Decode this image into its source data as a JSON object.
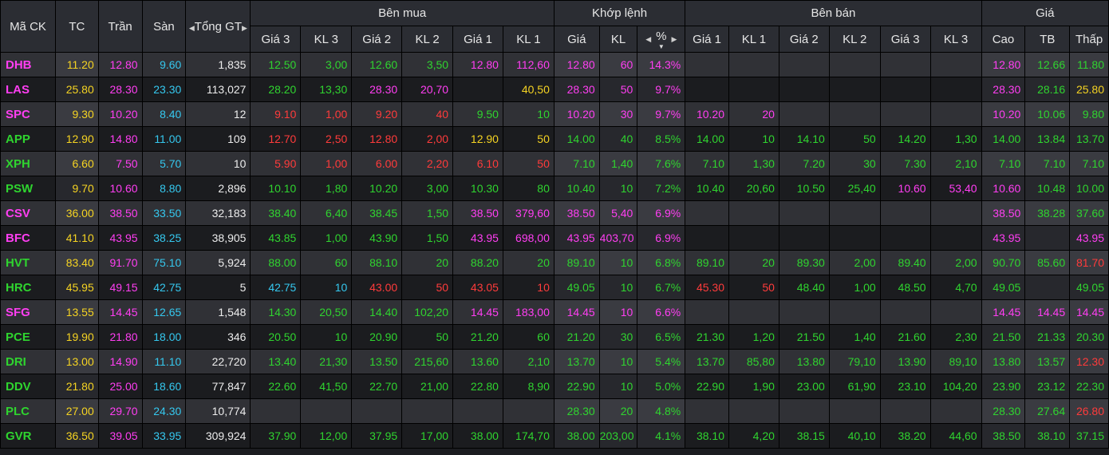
{
  "headers": {
    "symbol": "Mã CK",
    "ref": "TC",
    "ceiling": "Trần",
    "floor": "Sàn",
    "total": "Tổng GT",
    "bid_group": "Bên mua",
    "match_group": "Khớp lệnh",
    "ask_group": "Bên bán",
    "price_group": "Giá",
    "bid_cols": [
      "Giá 3",
      "KL 3",
      "Giá 2",
      "KL 2",
      "Giá 1",
      "KL 1"
    ],
    "match_cols": [
      "Giá",
      "KL",
      "%"
    ],
    "ask_cols": [
      "Giá 1",
      "KL 1",
      "Giá 2",
      "KL 2",
      "Giá 3",
      "KL 3"
    ],
    "price_cols": [
      "Cao",
      "TB",
      "Thấp"
    ]
  },
  "colors": {
    "up": "#2fd42f",
    "down": "#ff3b3b",
    "ref": "#f5d322",
    "ceiling": "#ff3ef2",
    "floor": "#35c8ef"
  },
  "rows": [
    {
      "sym": "DHB",
      "sc": "c",
      "tc": "11.20",
      "tran": "12.80",
      "san": "9.60",
      "tong": "1,835",
      "b3": "12.50",
      "b3v": "3,00",
      "b3c": "u",
      "b2": "12.60",
      "b2v": "3,50",
      "b2c": "u",
      "b1": "12.80",
      "b1v": "112,60",
      "b1c": "c",
      "mp": "12.80",
      "mv": "60",
      "mpct": "14.3%",
      "mc": "c",
      "a1": "",
      "a1v": "",
      "a1c": "",
      "a2": "",
      "a2v": "",
      "a2c": "",
      "a3": "",
      "a3v": "",
      "a3c": "",
      "cao": "12.80",
      "caoc": "c",
      "tb": "12.66",
      "tbc": "u",
      "thap": "11.80",
      "thapc": "u"
    },
    {
      "sym": "LAS",
      "sc": "c",
      "tc": "25.80",
      "tran": "28.30",
      "san": "23.30",
      "tong": "113,027",
      "b3": "28.20",
      "b3v": "13,30",
      "b3c": "u",
      "b2": "28.30",
      "b2v": "20,70",
      "b2c": "c",
      "b1": "",
      "b1v": "40,50",
      "b1c": "r",
      "mp": "28.30",
      "mv": "50",
      "mpct": "9.7%",
      "mc": "c",
      "a1": "",
      "a1v": "",
      "a1c": "",
      "a2": "",
      "a2v": "",
      "a2c": "",
      "a3": "",
      "a3v": "",
      "a3c": "",
      "cao": "28.30",
      "caoc": "c",
      "tb": "28.16",
      "tbc": "u",
      "thap": "25.80",
      "thapc": "r"
    },
    {
      "sym": "SPC",
      "sc": "c",
      "tc": "9.30",
      "tran": "10.20",
      "san": "8.40",
      "tong": "12",
      "b3": "9.10",
      "b3v": "1,00",
      "b3c": "d",
      "b2": "9.20",
      "b2v": "40",
      "b2c": "d",
      "b1": "9.50",
      "b1v": "10",
      "b1c": "u",
      "mp": "10.20",
      "mv": "30",
      "mpct": "9.7%",
      "mc": "c",
      "a1": "10.20",
      "a1v": "20",
      "a1c": "c",
      "a2": "",
      "a2v": "",
      "a2c": "",
      "a3": "",
      "a3v": "",
      "a3c": "",
      "cao": "10.20",
      "caoc": "c",
      "tb": "10.06",
      "tbc": "u",
      "thap": "9.80",
      "thapc": "u"
    },
    {
      "sym": "APP",
      "sc": "u",
      "tc": "12.90",
      "tran": "14.80",
      "san": "11.00",
      "tong": "109",
      "b3": "12.70",
      "b3v": "2,50",
      "b3c": "d",
      "b2": "12.80",
      "b2v": "2,00",
      "b2c": "d",
      "b1": "12.90",
      "b1v": "50",
      "b1c": "r",
      "mp": "14.00",
      "mv": "40",
      "mpct": "8.5%",
      "mc": "u",
      "a1": "14.00",
      "a1v": "10",
      "a1c": "u",
      "a2": "14.10",
      "a2v": "50",
      "a2c": "u",
      "a3": "14.20",
      "a3v": "1,30",
      "a3c": "u",
      "cao": "14.00",
      "caoc": "u",
      "tb": "13.84",
      "tbc": "u",
      "thap": "13.70",
      "thapc": "u"
    },
    {
      "sym": "XPH",
      "sc": "u",
      "tc": "6.60",
      "tran": "7.50",
      "san": "5.70",
      "tong": "10",
      "b3": "5.90",
      "b3v": "1,00",
      "b3c": "d",
      "b2": "6.00",
      "b2v": "2,20",
      "b2c": "d",
      "b1": "6.10",
      "b1v": "50",
      "b1c": "d",
      "mp": "7.10",
      "mv": "1,40",
      "mpct": "7.6%",
      "mc": "u",
      "a1": "7.10",
      "a1v": "1,30",
      "a1c": "u",
      "a2": "7.20",
      "a2v": "30",
      "a2c": "u",
      "a3": "7.30",
      "a3v": "2,10",
      "a3c": "u",
      "cao": "7.10",
      "caoc": "u",
      "tb": "7.10",
      "tbc": "u",
      "thap": "7.10",
      "thapc": "u"
    },
    {
      "sym": "PSW",
      "sc": "u",
      "tc": "9.70",
      "tran": "10.60",
      "san": "8.80",
      "tong": "2,896",
      "b3": "10.10",
      "b3v": "1,80",
      "b3c": "u",
      "b2": "10.20",
      "b2v": "3,00",
      "b2c": "u",
      "b1": "10.30",
      "b1v": "80",
      "b1c": "u",
      "mp": "10.40",
      "mv": "10",
      "mpct": "7.2%",
      "mc": "u",
      "a1": "10.40",
      "a1v": "20,60",
      "a1c": "u",
      "a2": "10.50",
      "a2v": "25,40",
      "a2c": "u",
      "a3": "10.60",
      "a3v": "53,40",
      "a3c": "c",
      "cao": "10.60",
      "caoc": "c",
      "tb": "10.48",
      "tbc": "u",
      "thap": "10.00",
      "thapc": "u"
    },
    {
      "sym": "CSV",
      "sc": "c",
      "tc": "36.00",
      "tran": "38.50",
      "san": "33.50",
      "tong": "32,183",
      "b3": "38.40",
      "b3v": "6,40",
      "b3c": "u",
      "b2": "38.45",
      "b2v": "1,50",
      "b2c": "u",
      "b1": "38.50",
      "b1v": "379,60",
      "b1c": "c",
      "mp": "38.50",
      "mv": "5,40",
      "mpct": "6.9%",
      "mc": "c",
      "a1": "",
      "a1v": "",
      "a1c": "",
      "a2": "",
      "a2v": "",
      "a2c": "",
      "a3": "",
      "a3v": "",
      "a3c": "",
      "cao": "38.50",
      "caoc": "c",
      "tb": "38.28",
      "tbc": "u",
      "thap": "37.60",
      "thapc": "u"
    },
    {
      "sym": "BFC",
      "sc": "c",
      "tc": "41.10",
      "tran": "43.95",
      "san": "38.25",
      "tong": "38,905",
      "b3": "43.85",
      "b3v": "1,00",
      "b3c": "u",
      "b2": "43.90",
      "b2v": "1,50",
      "b2c": "u",
      "b1": "43.95",
      "b1v": "698,00",
      "b1c": "c",
      "mp": "43.95",
      "mv": "403,70",
      "mpct": "6.9%",
      "mc": "c",
      "a1": "",
      "a1v": "",
      "a1c": "",
      "a2": "",
      "a2v": "",
      "a2c": "",
      "a3": "",
      "a3v": "",
      "a3c": "",
      "cao": "43.95",
      "caoc": "c",
      "tb": "",
      "tbc": "u",
      "thap": "43.95",
      "thapc": "c"
    },
    {
      "sym": "HVT",
      "sc": "u",
      "tc": "83.40",
      "tran": "91.70",
      "san": "75.10",
      "tong": "5,924",
      "b3": "88.00",
      "b3v": "60",
      "b3c": "u",
      "b2": "88.10",
      "b2v": "20",
      "b2c": "u",
      "b1": "88.20",
      "b1v": "20",
      "b1c": "u",
      "mp": "89.10",
      "mv": "10",
      "mpct": "6.8%",
      "mc": "u",
      "a1": "89.10",
      "a1v": "20",
      "a1c": "u",
      "a2": "89.30",
      "a2v": "2,00",
      "a2c": "u",
      "a3": "89.40",
      "a3v": "2,00",
      "a3c": "u",
      "cao": "90.70",
      "caoc": "u",
      "tb": "85.60",
      "tbc": "u",
      "thap": "81.70",
      "thapc": "d"
    },
    {
      "sym": "HRC",
      "sc": "u",
      "tc": "45.95",
      "tran": "49.15",
      "san": "42.75",
      "tong": "5",
      "b3": "42.75",
      "b3v": "10",
      "b3c": "f",
      "b2": "43.00",
      "b2v": "50",
      "b2c": "d",
      "b1": "43.05",
      "b1v": "10",
      "b1c": "d",
      "mp": "49.05",
      "mv": "10",
      "mpct": "6.7%",
      "mc": "u",
      "a1": "45.30",
      "a1v": "50",
      "a1c": "d",
      "a2": "48.40",
      "a2v": "1,00",
      "a2c": "u",
      "a3": "48.50",
      "a3v": "4,70",
      "a3c": "u",
      "cao": "49.05",
      "caoc": "u",
      "tb": "",
      "tbc": "u",
      "thap": "49.05",
      "thapc": "u"
    },
    {
      "sym": "SFG",
      "sc": "c",
      "tc": "13.55",
      "tran": "14.45",
      "san": "12.65",
      "tong": "1,548",
      "b3": "14.30",
      "b3v": "20,50",
      "b3c": "u",
      "b2": "14.40",
      "b2v": "102,20",
      "b2c": "u",
      "b1": "14.45",
      "b1v": "183,00",
      "b1c": "c",
      "mp": "14.45",
      "mv": "10",
      "mpct": "6.6%",
      "mc": "c",
      "a1": "",
      "a1v": "",
      "a1c": "",
      "a2": "",
      "a2v": "",
      "a2c": "",
      "a3": "",
      "a3v": "",
      "a3c": "",
      "cao": "14.45",
      "caoc": "c",
      "tb": "14.45",
      "tbc": "c",
      "thap": "14.45",
      "thapc": "c"
    },
    {
      "sym": "PCE",
      "sc": "u",
      "tc": "19.90",
      "tran": "21.80",
      "san": "18.00",
      "tong": "346",
      "b3": "20.50",
      "b3v": "10",
      "b3c": "u",
      "b2": "20.90",
      "b2v": "50",
      "b2c": "u",
      "b1": "21.20",
      "b1v": "60",
      "b1c": "u",
      "mp": "21.20",
      "mv": "30",
      "mpct": "6.5%",
      "mc": "u",
      "a1": "21.30",
      "a1v": "1,20",
      "a1c": "u",
      "a2": "21.50",
      "a2v": "1,40",
      "a2c": "u",
      "a3": "21.60",
      "a3v": "2,30",
      "a3c": "u",
      "cao": "21.50",
      "caoc": "u",
      "tb": "21.33",
      "tbc": "u",
      "thap": "20.30",
      "thapc": "u"
    },
    {
      "sym": "DRI",
      "sc": "u",
      "tc": "13.00",
      "tran": "14.90",
      "san": "11.10",
      "tong": "22,720",
      "b3": "13.40",
      "b3v": "21,30",
      "b3c": "u",
      "b2": "13.50",
      "b2v": "215,60",
      "b2c": "u",
      "b1": "13.60",
      "b1v": "2,10",
      "b1c": "u",
      "mp": "13.70",
      "mv": "10",
      "mpct": "5.4%",
      "mc": "u",
      "a1": "13.70",
      "a1v": "85,80",
      "a1c": "u",
      "a2": "13.80",
      "a2v": "79,10",
      "a2c": "u",
      "a3": "13.90",
      "a3v": "89,10",
      "a3c": "u",
      "cao": "13.80",
      "caoc": "u",
      "tb": "13.57",
      "tbc": "u",
      "thap": "12.30",
      "thapc": "d"
    },
    {
      "sym": "DDV",
      "sc": "u",
      "tc": "21.80",
      "tran": "25.00",
      "san": "18.60",
      "tong": "77,847",
      "b3": "22.60",
      "b3v": "41,50",
      "b3c": "u",
      "b2": "22.70",
      "b2v": "21,00",
      "b2c": "u",
      "b1": "22.80",
      "b1v": "8,90",
      "b1c": "u",
      "mp": "22.90",
      "mv": "10",
      "mpct": "5.0%",
      "mc": "u",
      "a1": "22.90",
      "a1v": "1,90",
      "a1c": "u",
      "a2": "23.00",
      "a2v": "61,90",
      "a2c": "u",
      "a3": "23.10",
      "a3v": "104,20",
      "a3c": "u",
      "cao": "23.90",
      "caoc": "u",
      "tb": "23.12",
      "tbc": "u",
      "thap": "22.30",
      "thapc": "u"
    },
    {
      "sym": "PLC",
      "sc": "u",
      "tc": "27.00",
      "tran": "29.70",
      "san": "24.30",
      "tong": "10,774",
      "b3": "",
      "b3v": "",
      "b3c": "",
      "b2": "",
      "b2v": "",
      "b2c": "",
      "b1": "",
      "b1v": "",
      "b1c": "",
      "mp": "28.30",
      "mv": "20",
      "mpct": "4.8%",
      "mc": "u",
      "a1": "",
      "a1v": "",
      "a1c": "",
      "a2": "",
      "a2v": "",
      "a2c": "",
      "a3": "",
      "a3v": "",
      "a3c": "",
      "cao": "28.30",
      "caoc": "u",
      "tb": "27.64",
      "tbc": "u",
      "thap": "26.80",
      "thapc": "d"
    },
    {
      "sym": "GVR",
      "sc": "u",
      "tc": "36.50",
      "tran": "39.05",
      "san": "33.95",
      "tong": "309,924",
      "b3": "37.90",
      "b3v": "12,00",
      "b3c": "u",
      "b2": "37.95",
      "b2v": "17,00",
      "b2c": "u",
      "b1": "38.00",
      "b1v": "174,70",
      "b1c": "u",
      "mp": "38.00",
      "mv": "203,00",
      "mpct": "4.1%",
      "mc": "u",
      "a1": "38.10",
      "a1v": "4,20",
      "a1c": "u",
      "a2": "38.15",
      "a2v": "40,10",
      "a2c": "u",
      "a3": "38.20",
      "a3v": "44,60",
      "a3c": "u",
      "cao": "38.50",
      "caoc": "u",
      "tb": "38.10",
      "tbc": "u",
      "thap": "37.15",
      "thapc": "u"
    }
  ]
}
